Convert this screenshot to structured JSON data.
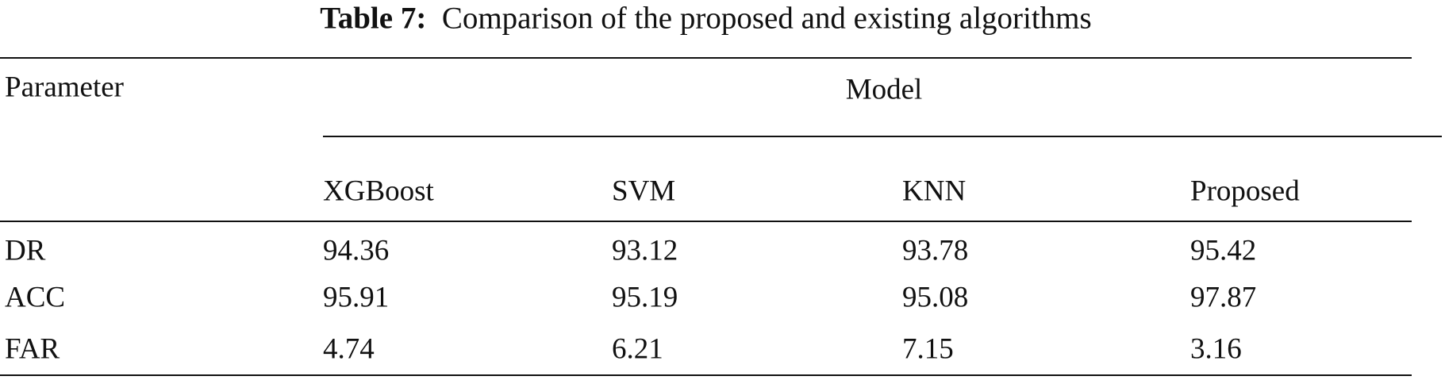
{
  "table": {
    "label": "Table 7:",
    "caption": "Comparison of the proposed and existing algorithms",
    "row_header": "Parameter",
    "group_header": "Model",
    "columns": [
      "XGBoost",
      "SVM",
      "KNN",
      "Proposed"
    ],
    "rows": [
      {
        "name": "DR",
        "values": [
          94.36,
          93.12,
          93.78,
          95.42
        ]
      },
      {
        "name": "ACC",
        "values": [
          95.91,
          95.19,
          95.08,
          97.87
        ]
      },
      {
        "name": "FAR",
        "values": [
          4.74,
          6.21,
          7.15,
          3.16
        ]
      }
    ]
  }
}
